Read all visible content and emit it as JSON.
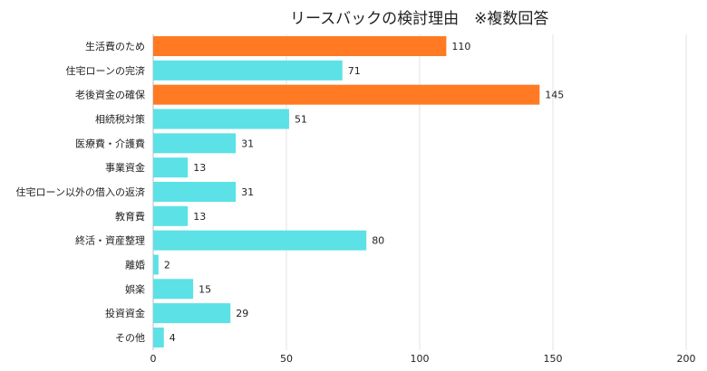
{
  "chart_data": {
    "type": "bar",
    "orientation": "horizontal",
    "title": "リースバックの検討理由　※複数回答",
    "categories": [
      "生活費のため",
      "住宅ローンの完済",
      "老後資金の確保",
      "相続税対策",
      "医療費・介護費",
      "事業資金",
      "住宅ローン以外の借入の返済",
      "教育費",
      "終活・資産整理",
      "離婚",
      "娯楽",
      "投資資金",
      "その他"
    ],
    "values": [
      110,
      71,
      145,
      51,
      31,
      13,
      31,
      13,
      80,
      2,
      15,
      29,
      4
    ],
    "highlight": [
      true,
      false,
      true,
      false,
      false,
      false,
      false,
      false,
      false,
      false,
      false,
      false,
      false
    ],
    "xlim": [
      0,
      200
    ],
    "xticks": [
      0,
      50,
      100,
      150,
      200
    ],
    "grid": true,
    "legend": "none",
    "colors": {
      "highlight": "#FF7A22",
      "default": "#5CE1E6",
      "grid": "#E3E3E3",
      "text": "#222222"
    }
  }
}
